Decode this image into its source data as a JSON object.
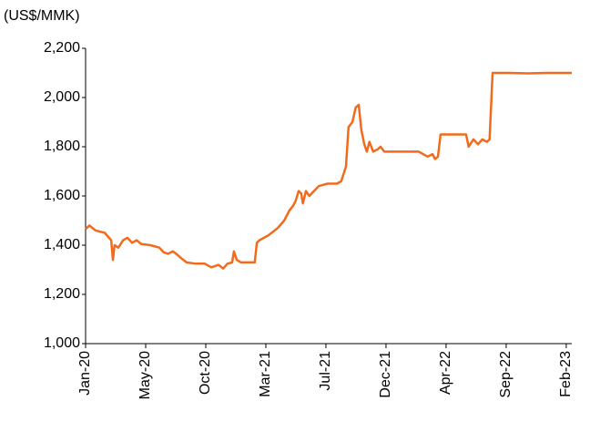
{
  "chart_data": {
    "type": "line",
    "y_label": "(US$/MMK)",
    "x": [
      0,
      9,
      23,
      45,
      60,
      64,
      68,
      77,
      88,
      98,
      109,
      120,
      130,
      152,
      173,
      184,
      194,
      205,
      216,
      226,
      237,
      258,
      280,
      295,
      312,
      323,
      333,
      344,
      348,
      355,
      365,
      387,
      397,
      402,
      408,
      429,
      451,
      466,
      478,
      487,
      493,
      500,
      506,
      510,
      517,
      525,
      536,
      547,
      568,
      590,
      600,
      611,
      617,
      626,
      634,
      641,
      647,
      654,
      660,
      666,
      675,
      686,
      692,
      701,
      739,
      782,
      792,
      803,
      814,
      820,
      827,
      833,
      867,
      893,
      899,
      910,
      921,
      931,
      942,
      948,
      955,
      995,
      1038,
      1081,
      1141
    ],
    "series": [
      {
        "name": "US$/MMK",
        "color": "#f26b1d",
        "values": [
          1465,
          1480,
          1460,
          1450,
          1420,
          1340,
          1400,
          1390,
          1420,
          1430,
          1410,
          1420,
          1405,
          1400,
          1390,
          1370,
          1365,
          1375,
          1360,
          1345,
          1330,
          1325,
          1325,
          1310,
          1320,
          1305,
          1325,
          1330,
          1375,
          1340,
          1330,
          1330,
          1330,
          1410,
          1420,
          1440,
          1470,
          1500,
          1540,
          1560,
          1580,
          1620,
          1610,
          1570,
          1620,
          1600,
          1620,
          1640,
          1650,
          1650,
          1660,
          1720,
          1880,
          1900,
          1960,
          1970,
          1870,
          1810,
          1780,
          1820,
          1780,
          1790,
          1800,
          1780,
          1780,
          1780,
          1770,
          1760,
          1770,
          1750,
          1760,
          1850,
          1850,
          1850,
          1800,
          1830,
          1810,
          1830,
          1820,
          1830,
          2100,
          2100,
          2098,
          2100,
          2100
        ]
      }
    ],
    "xlim": [
      0,
      1141
    ],
    "xticks": [
      {
        "value": 0,
        "label": "Jan-20"
      },
      {
        "value": 141,
        "label": "May-20"
      },
      {
        "value": 282,
        "label": "Oct-20"
      },
      {
        "value": 423,
        "label": "Mar-21"
      },
      {
        "value": 564,
        "label": "Jul-21"
      },
      {
        "value": 705,
        "label": "Dec-21"
      },
      {
        "value": 846,
        "label": "Apr-22"
      },
      {
        "value": 987,
        "label": "Sep-22"
      },
      {
        "value": 1128,
        "label": "Feb-23"
      }
    ],
    "ylim": [
      1000,
      2200
    ],
    "yticks": [
      {
        "value": 1000,
        "label": "1,000"
      },
      {
        "value": 1200,
        "label": "1,200"
      },
      {
        "value": 1400,
        "label": "1,400"
      },
      {
        "value": 1600,
        "label": "1,600"
      },
      {
        "value": 1800,
        "label": "1,800"
      },
      {
        "value": 2000,
        "label": "2,000"
      },
      {
        "value": 2200,
        "label": "2,200"
      }
    ],
    "grid": false
  }
}
